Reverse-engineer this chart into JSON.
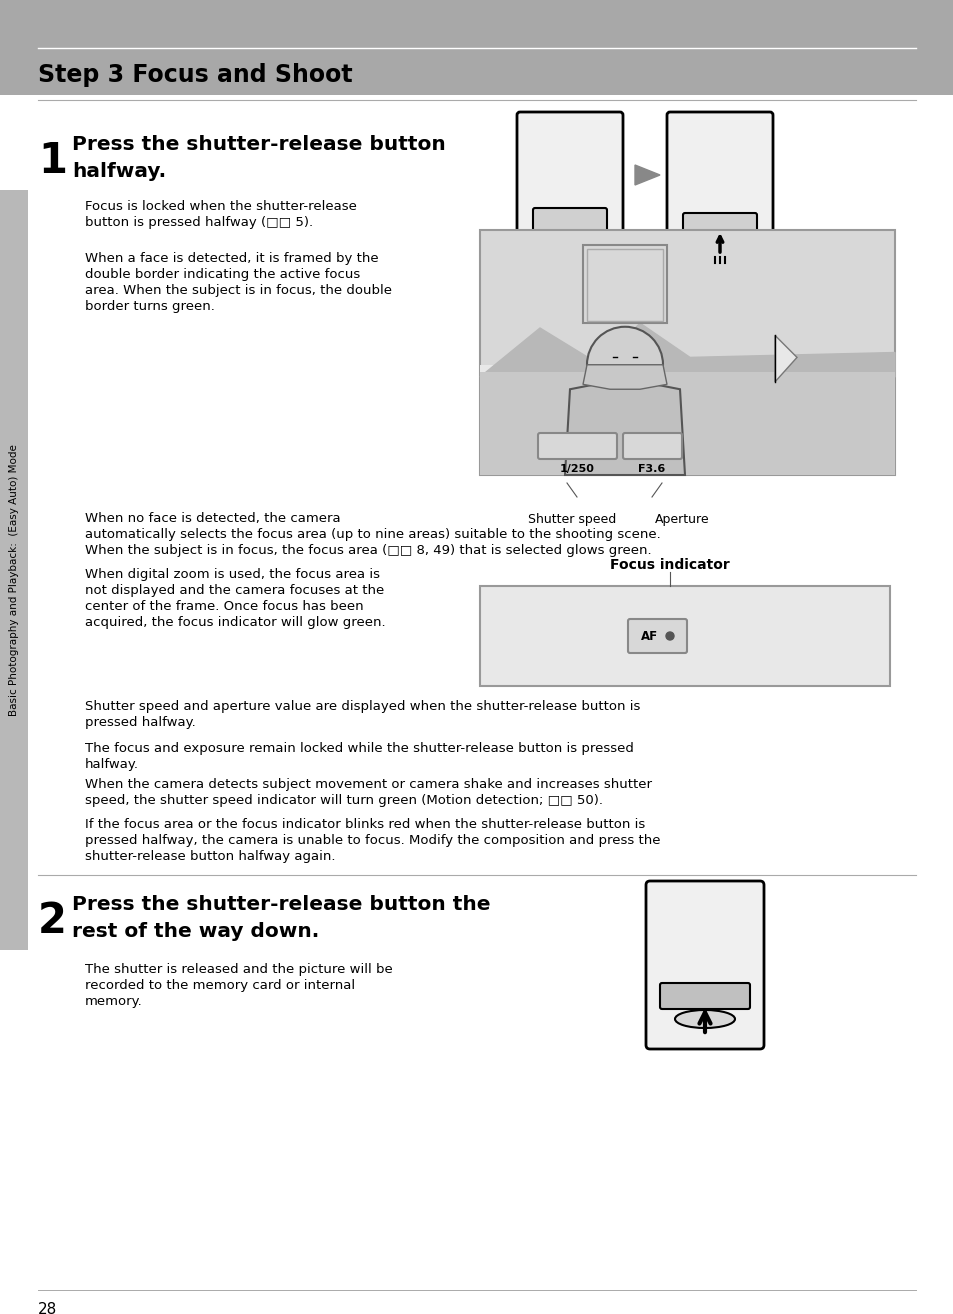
{
  "page_bg": "#ffffff",
  "header_bg": "#aaaaaa",
  "header_text": "Step 3 Focus and Shoot",
  "header_text_color": "#000000",
  "header_line_color": "#ffffff",
  "sidebar_bg": "#c0c0c0",
  "sidebar_text": "Basic Photography and Playback:  (Easy Auto) Mode",
  "page_number": "28",
  "step1_number": "1",
  "step1_title": "Press the shutter-release button\nhalfway.",
  "step1_body1": "Focus is locked when the shutter-release\nbutton is pressed halfway (□□ 5).",
  "step1_body2": "When a face is detected, it is framed by the\ndouble border indicating the active focus\narea. When the subject is in focus, the double\nborder turns green.",
  "shutter_speed_label": "Shutter speed",
  "aperture_label": "Aperture",
  "focus_indicator_label": "Focus indicator",
  "no_face_text": "When no face is detected, the camera\nautomatically selects the focus area (up to nine areas) suitable to the shooting scene.\nWhen the subject is in focus, the focus area (□□ 8, 49) that is selected glows green.",
  "digital_zoom_text": "When digital zoom is used, the focus area is\nnot displayed and the camera focuses at the\ncenter of the frame. Once focus has been\nacquired, the focus indicator will glow green.",
  "shutter_aperture_text": "Shutter speed and aperture value are displayed when the shutter-release button is\npressed halfway.",
  "focus_exposure_text": "The focus and exposure remain locked while the shutter-release button is pressed\nhalfway.",
  "motion_detection_text": "When the camera detects subject movement or camera shake and increases shutter\nspeed, the shutter speed indicator will turn green (Motion detection; □□ 50).",
  "blinks_red_text": "If the focus area or the focus indicator blinks red when the shutter-release button is\npressed halfway, the camera is unable to focus. Modify the composition and press the\nshutter-release button halfway again.",
  "step2_number": "2",
  "step2_title": "Press the shutter-release button the\nrest of the way down.",
  "step2_body": "The shutter is released and the picture will be\nrecorded to the memory card or internal\nmemory.",
  "divider_color": "#aaaaaa",
  "text_color": "#000000",
  "body_font_size": 9.5,
  "title_font_size": 14,
  "step_num_font_size": 32
}
